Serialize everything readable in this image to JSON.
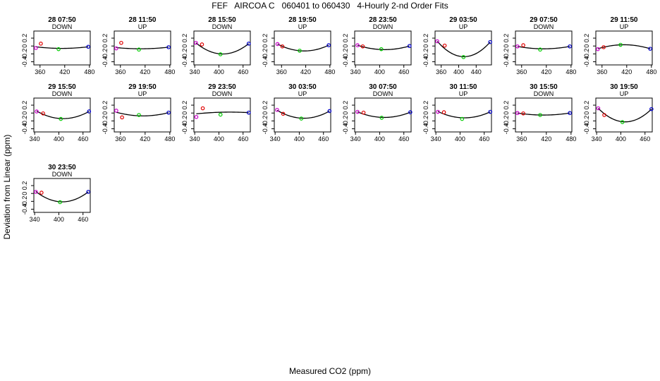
{
  "title": "FEF   AIRCOA C   060401 to 060430   4-Hourly 2-nd Order Fits",
  "y_axis_label": "Deviation from Linear (ppm)",
  "x_axis_label": "Measured CO2 (ppm)",
  "colors": {
    "point_1": "#cc00cc",
    "point_2": "#e00000",
    "point_3": "#00cc00",
    "point_4": "#0000cc",
    "fit_line": "#000000"
  },
  "chart_data": [
    {
      "type": "scatter",
      "title": "28 07:50",
      "mode": "DOWN",
      "x_ticks": [
        360,
        420,
        480
      ],
      "xlim": [
        345,
        482
      ],
      "y_ticks": [
        0.2,
        0,
        -0.2,
        -0.4
      ],
      "ylim": [
        -0.48,
        0.38
      ],
      "x": [
        350,
        362,
        405,
        477
      ],
      "y": [
        -0.05,
        0.06,
        -0.08,
        -0.02
      ],
      "fit": [
        -0.02,
        -0.06,
        -0.02
      ]
    },
    {
      "type": "scatter",
      "title": "28 11:50",
      "mode": "UP",
      "x_ticks": [
        360,
        420,
        480
      ],
      "xlim": [
        345,
        482
      ],
      "y_ticks": [
        0.2,
        0,
        -0.2,
        -0.4
      ],
      "ylim": [
        -0.48,
        0.38
      ],
      "x": [
        350,
        362,
        405,
        477
      ],
      "y": [
        -0.06,
        0.08,
        -0.09,
        -0.03
      ],
      "fit": [
        -0.04,
        -0.07,
        -0.03
      ]
    },
    {
      "type": "scatter",
      "title": "28 15:50",
      "mode": "DOWN",
      "x_ticks": [
        340,
        400,
        460
      ],
      "xlim": [
        338,
        478
      ],
      "y_ticks": [
        0.2,
        0,
        -0.2,
        -0.4
      ],
      "ylim": [
        -0.48,
        0.38
      ],
      "x": [
        343,
        358,
        404,
        474
      ],
      "y": [
        0.08,
        0.04,
        -0.21,
        0.06
      ],
      "fit": [
        0.08,
        -0.2,
        0.06
      ]
    },
    {
      "type": "scatter",
      "title": "28 19:50",
      "mode": "UP",
      "x_ticks": [
        360,
        420,
        480
      ],
      "xlim": [
        342,
        482
      ],
      "y_ticks": [
        0.2,
        0,
        -0.2,
        -0.4
      ],
      "ylim": [
        -0.48,
        0.38
      ],
      "x": [
        350,
        362,
        405,
        477
      ],
      "y": [
        0.05,
        -0.01,
        -0.12,
        0.02
      ],
      "fit": [
        0.05,
        -0.12,
        0.02
      ]
    },
    {
      "type": "scatter",
      "title": "28 23:50",
      "mode": "DOWN",
      "x_ticks": [
        340,
        400,
        460
      ],
      "xlim": [
        338,
        478
      ],
      "y_ticks": [
        0.2,
        0,
        -0.2,
        -0.4
      ],
      "ylim": [
        -0.48,
        0.38
      ],
      "x": [
        345,
        358,
        404,
        474
      ],
      "y": [
        0.02,
        -0.01,
        -0.08,
        0.0
      ],
      "fit": [
        0.02,
        -0.09,
        0.0
      ]
    },
    {
      "type": "scatter",
      "title": "29 03:50",
      "mode": "UP",
      "x_ticks": [
        360,
        400,
        440
      ],
      "xlim": [
        346,
        475
      ],
      "y_ticks": [
        0.2,
        0,
        -0.2,
        -0.4
      ],
      "ylim": [
        -0.48,
        0.38
      ],
      "x": [
        351,
        368,
        411,
        472
      ],
      "y": [
        0.12,
        0.01,
        -0.28,
        0.1
      ],
      "fit": [
        0.12,
        -0.27,
        0.1
      ]
    },
    {
      "type": "scatter",
      "title": "29 07:50",
      "mode": "DOWN",
      "x_ticks": [
        360,
        420,
        480
      ],
      "xlim": [
        345,
        482
      ],
      "y_ticks": [
        0.2,
        0,
        -0.2,
        -0.4
      ],
      "ylim": [
        -0.48,
        0.38
      ],
      "x": [
        350,
        364,
        405,
        477
      ],
      "y": [
        -0.01,
        0.02,
        -0.09,
        -0.01
      ],
      "fit": [
        -0.01,
        -0.07,
        -0.01
      ]
    },
    {
      "type": "scatter",
      "title": "29 11:50",
      "mode": "UP",
      "x_ticks": [
        360,
        420,
        480
      ],
      "xlim": [
        345,
        482
      ],
      "y_ticks": [
        0.2,
        0,
        -0.2,
        -0.4
      ],
      "ylim": [
        -0.48,
        0.38
      ],
      "x": [
        350,
        364,
        405,
        477
      ],
      "y": [
        -0.08,
        -0.03,
        0.03,
        -0.07
      ],
      "fit": [
        -0.07,
        0.03,
        -0.07
      ]
    },
    {
      "type": "scatter",
      "title": "29 15:50",
      "mode": "DOWN",
      "x_ticks": [
        340,
        400,
        460
      ],
      "xlim": [
        338,
        478
      ],
      "y_ticks": [
        0.2,
        0,
        -0.2,
        -0.4
      ],
      "ylim": [
        -0.48,
        0.38
      ],
      "x": [
        345,
        361,
        405,
        475
      ],
      "y": [
        0.04,
        -0.01,
        -0.15,
        0.04
      ],
      "fit": [
        0.05,
        -0.14,
        0.04
      ]
    },
    {
      "type": "scatter",
      "title": "29 19:50",
      "mode": "UP",
      "x_ticks": [
        360,
        420,
        480
      ],
      "xlim": [
        345,
        482
      ],
      "y_ticks": [
        0.2,
        0,
        -0.2,
        -0.4
      ],
      "ylim": [
        -0.48,
        0.38
      ],
      "x": [
        350,
        364,
        405,
        477
      ],
      "y": [
        0.06,
        -0.11,
        -0.05,
        0.01
      ],
      "fit": [
        0.02,
        -0.07,
        0.01
      ]
    },
    {
      "type": "scatter",
      "title": "29 23:50",
      "mode": "DOWN",
      "x_ticks": [
        340,
        400,
        460
      ],
      "xlim": [
        338,
        478
      ],
      "y_ticks": [
        0.2,
        0,
        -0.2,
        -0.4
      ],
      "ylim": [
        -0.48,
        0.38
      ],
      "x": [
        344,
        360,
        404,
        474
      ],
      "y": [
        -0.1,
        0.12,
        -0.04,
        0.01
      ],
      "fit": [
        -0.02,
        0.02,
        0.01
      ]
    },
    {
      "type": "scatter",
      "title": "30 03:50",
      "mode": "UP",
      "x_ticks": [
        340,
        400,
        460
      ],
      "xlim": [
        338,
        478
      ],
      "y_ticks": [
        0.2,
        0,
        -0.2,
        -0.4
      ],
      "ylim": [
        -0.48,
        0.38
      ],
      "x": [
        345,
        360,
        405,
        475
      ],
      "y": [
        0.08,
        -0.02,
        -0.14,
        0.05
      ],
      "fit": [
        0.07,
        -0.13,
        0.05
      ]
    },
    {
      "type": "scatter",
      "title": "30 07:50",
      "mode": "DOWN",
      "x_ticks": [
        340,
        400,
        460
      ],
      "xlim": [
        338,
        478
      ],
      "y_ticks": [
        0.2,
        0,
        -0.2,
        -0.4
      ],
      "ylim": [
        -0.48,
        0.38
      ],
      "x": [
        345,
        360,
        405,
        476
      ],
      "y": [
        0.03,
        0.01,
        -0.12,
        0.02
      ],
      "fit": [
        0.03,
        -0.11,
        0.02
      ]
    },
    {
      "type": "scatter",
      "title": "30 11:50",
      "mode": "UP",
      "x_ticks": [
        340,
        400,
        460
      ],
      "xlim": [
        338,
        478
      ],
      "y_ticks": [
        0.2,
        0,
        -0.2,
        -0.4
      ],
      "ylim": [
        -0.48,
        0.38
      ],
      "x": [
        345,
        360,
        405,
        475
      ],
      "y": [
        0.03,
        0.02,
        -0.15,
        0.03
      ],
      "fit": [
        0.04,
        -0.12,
        0.03
      ]
    },
    {
      "type": "scatter",
      "title": "30 15:50",
      "mode": "DOWN",
      "x_ticks": [
        360,
        420,
        480
      ],
      "xlim": [
        345,
        482
      ],
      "y_ticks": [
        0.2,
        0,
        -0.2,
        -0.4
      ],
      "ylim": [
        -0.48,
        0.38
      ],
      "x": [
        350,
        364,
        405,
        477
      ],
      "y": [
        0.0,
        -0.01,
        -0.05,
        0.0
      ],
      "fit": [
        0.0,
        -0.05,
        0.0
      ]
    },
    {
      "type": "scatter",
      "title": "30 19:50",
      "mode": "UP",
      "x_ticks": [
        340,
        400,
        460
      ],
      "xlim": [
        338,
        478
      ],
      "y_ticks": [
        0.2,
        0,
        -0.2,
        -0.4
      ],
      "ylim": [
        -0.48,
        0.38
      ],
      "x": [
        344,
        359,
        404,
        476
      ],
      "y": [
        0.12,
        -0.05,
        -0.23,
        0.1
      ],
      "fit": [
        0.12,
        -0.22,
        0.1
      ]
    },
    {
      "type": "scatter",
      "title": "30 23:50",
      "mode": "DOWN",
      "x_ticks": [
        340,
        400,
        460
      ],
      "xlim": [
        338,
        478
      ],
      "y_ticks": [
        0.2,
        0,
        -0.2,
        -0.4
      ],
      "ylim": [
        -0.48,
        0.38
      ],
      "x": [
        343,
        357,
        403,
        473
      ],
      "y": [
        0.04,
        0.02,
        -0.22,
        0.04
      ],
      "fit": [
        0.05,
        -0.21,
        0.04
      ]
    }
  ]
}
